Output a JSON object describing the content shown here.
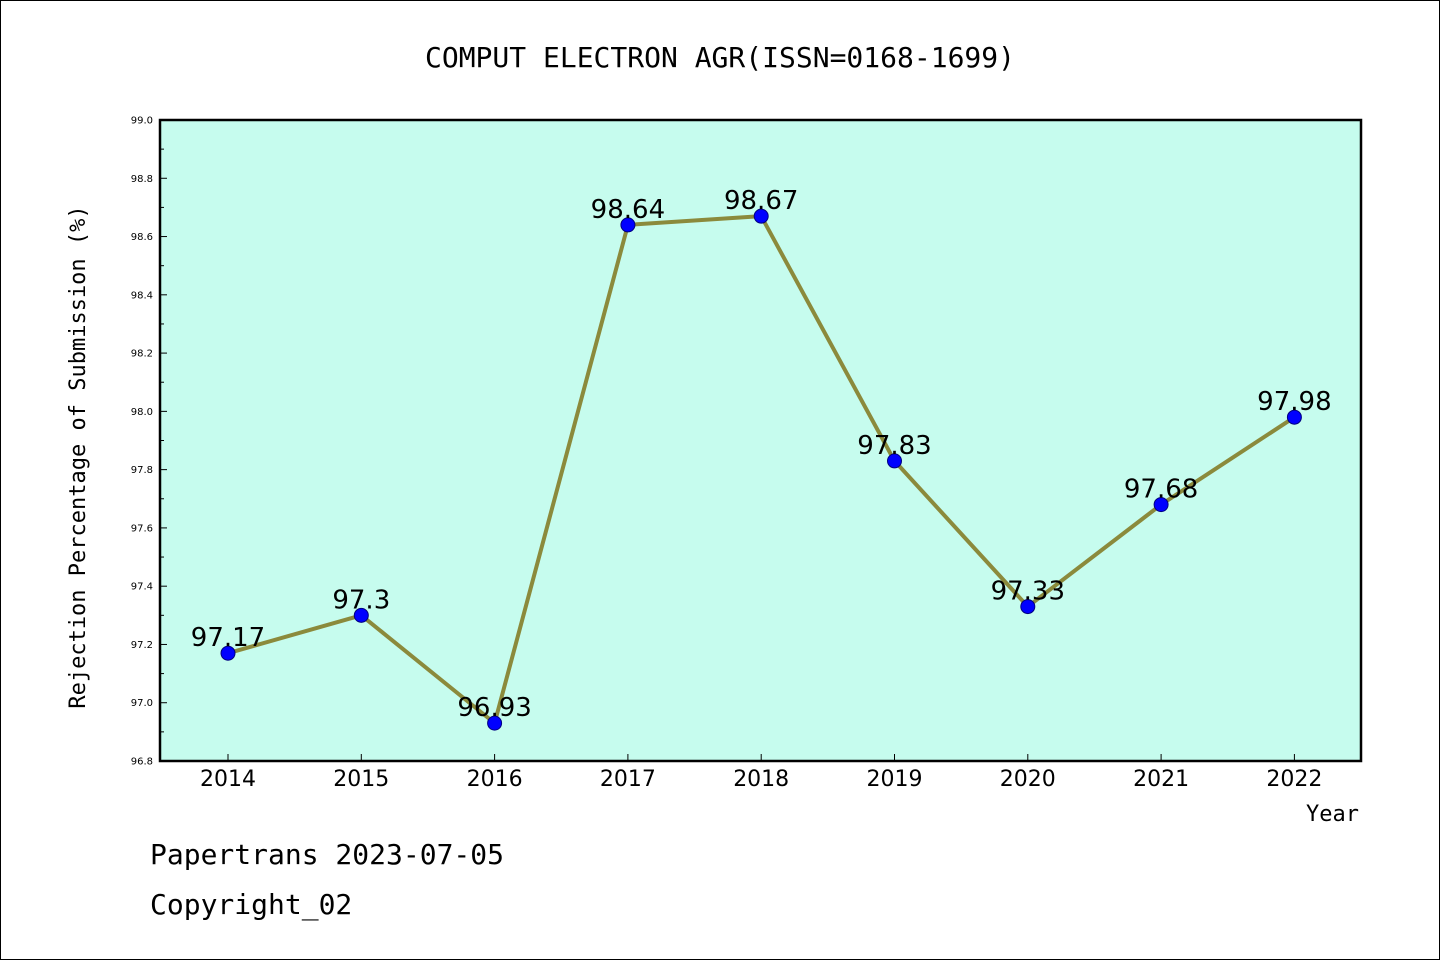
{
  "chart_data": {
    "type": "line",
    "title": "COMPUT ELECTRON AGR(ISSN=0168-1699)",
    "xlabel": "Year",
    "ylabel": "Rejection Percentage of Submission (%)",
    "categories": [
      "2014",
      "2015",
      "2016",
      "2017",
      "2018",
      "2019",
      "2020",
      "2021",
      "2022"
    ],
    "series": [
      {
        "values": [
          97.17,
          97.3,
          96.93,
          98.64,
          98.67,
          97.83,
          97.33,
          97.68,
          97.98
        ],
        "labels": [
          "97.17",
          "97.3",
          "96.93",
          "98.64",
          "98.67",
          "97.83",
          "97.33",
          "97.68",
          "97.98"
        ]
      }
    ],
    "ylim": [
      96.8,
      99.0
    ],
    "yticks": [
      "96.8",
      "97.0",
      "97.2",
      "97.4",
      "97.6",
      "97.8",
      "98.0",
      "98.2",
      "98.4",
      "98.6",
      "98.8",
      "99.0"
    ],
    "grid": false,
    "colors": {
      "plot_background": "#c6fcee",
      "line": "#8b8a3c",
      "marker": "#0000ff",
      "marker_edge": "#000080"
    }
  },
  "footer": {
    "line1": "Papertrans 2023-07-05",
    "line2": "Copyright_02"
  }
}
